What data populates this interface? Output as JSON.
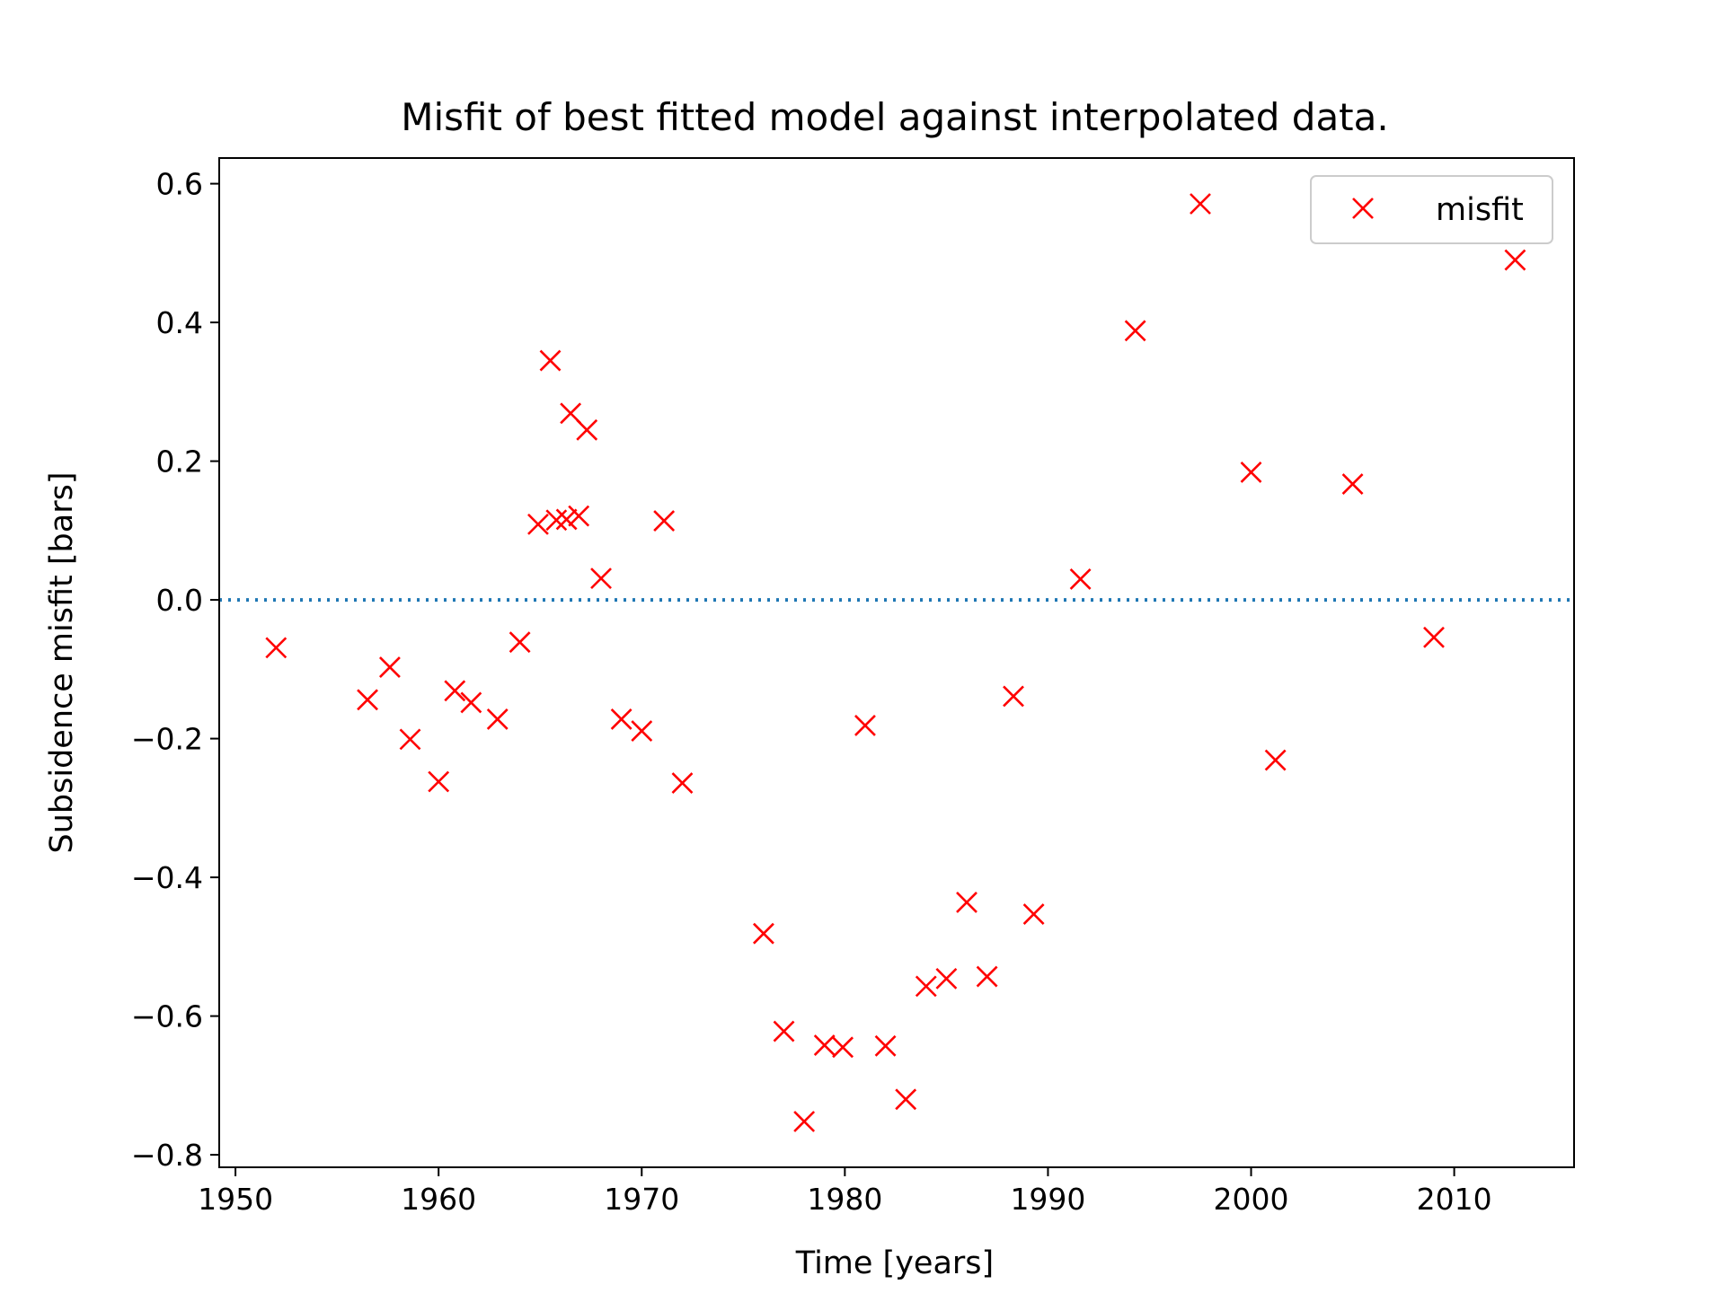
{
  "chart_data": {
    "type": "scatter",
    "title": "Misfit of best fitted model against interpolated data.",
    "xlabel": "Time [years]",
    "ylabel": "Subsidence misfit [bars]",
    "xlim": [
      1949.2,
      2015.9
    ],
    "ylim": [
      -0.818,
      0.637
    ],
    "xticks": [
      1950,
      1960,
      1970,
      1980,
      1990,
      2000,
      2010
    ],
    "yticks": [
      -0.8,
      -0.6,
      -0.4,
      -0.2,
      0.0,
      0.2,
      0.4,
      0.6
    ],
    "ytick_labels": [
      "−0.8",
      "−0.6",
      "−0.4",
      "−0.2",
      "0.0",
      "0.2",
      "0.4",
      "0.6"
    ],
    "grid": false,
    "legend": {
      "position": "top-right",
      "entries": [
        "misfit"
      ]
    },
    "reference_line": {
      "y": 0.0,
      "style": "dotted",
      "color": "#1f77b4"
    },
    "marker_color": "#ff0000",
    "series": [
      {
        "name": "misfit",
        "marker": "x",
        "x": [
          1952,
          1956.5,
          1957.6,
          1958.6,
          1960,
          1960.8,
          1961.6,
          1962.9,
          1964,
          1964.9,
          1965.5,
          1965.8,
          1966.3,
          1966.5,
          1966.9,
          1967.3,
          1968,
          1969,
          1970,
          1971.1,
          1972,
          1976,
          1977,
          1978,
          1979,
          1979.9,
          1981,
          1982,
          1983,
          1984,
          1985,
          1986,
          1987,
          1988.3,
          1989.3,
          1991.6,
          1994.3,
          1997.5,
          2000,
          2001.2,
          2005,
          2009,
          2013
        ],
        "y": [
          -0.069,
          -0.144,
          -0.097,
          -0.201,
          -0.262,
          -0.131,
          -0.148,
          -0.172,
          -0.061,
          0.109,
          0.345,
          0.115,
          0.116,
          0.269,
          0.121,
          0.245,
          0.031,
          -0.172,
          -0.189,
          0.114,
          -0.264,
          -0.481,
          -0.622,
          -0.752,
          -0.642,
          -0.645,
          -0.181,
          -0.643,
          -0.72,
          -0.557,
          -0.546,
          -0.436,
          -0.543,
          -0.139,
          -0.453,
          0.03,
          0.388,
          0.571,
          0.184,
          -0.231,
          0.167,
          -0.054,
          0.49
        ]
      }
    ]
  }
}
